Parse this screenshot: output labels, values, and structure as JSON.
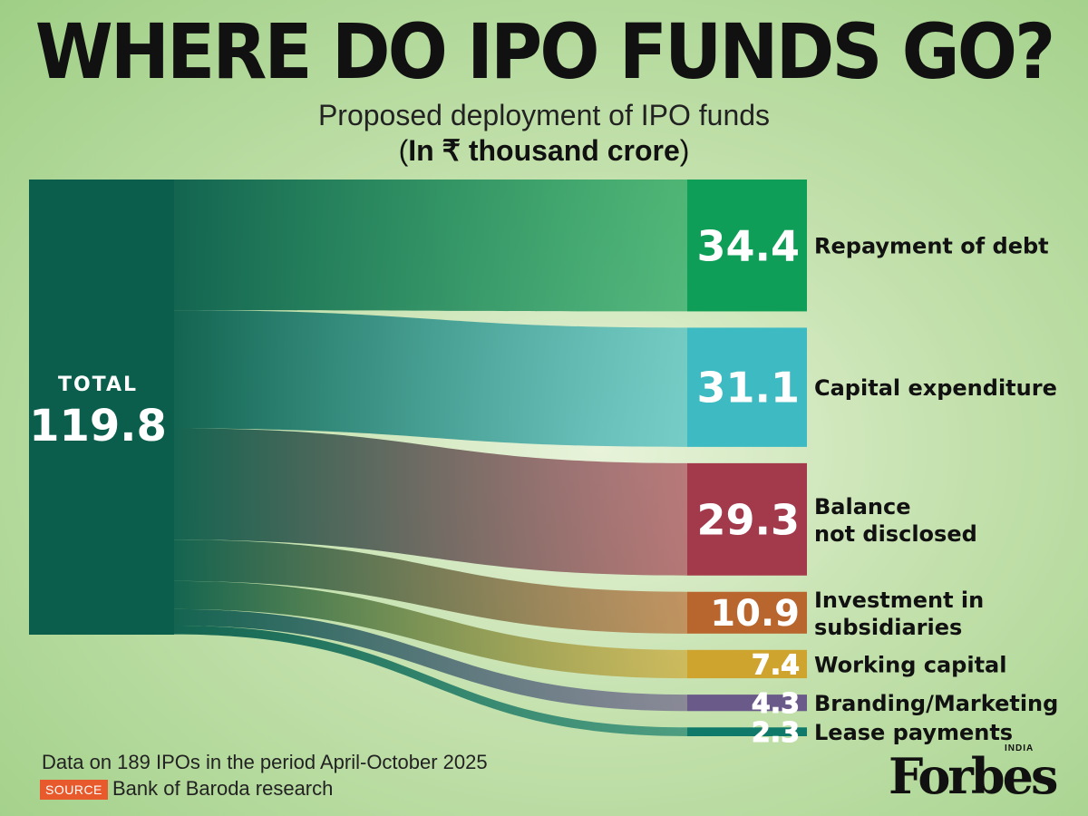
{
  "header": {
    "title": "WHERE DO IPO FUNDS GO?",
    "subtitle": "Proposed deployment of IPO funds",
    "unit_prefix": "(",
    "unit_bold": "In ₹ thousand crore",
    "unit_suffix": ")"
  },
  "chart_data": {
    "type": "sankey",
    "source": {
      "label": "TOTAL",
      "value": 119.8,
      "value_label": "119.8"
    },
    "targets": [
      {
        "name": "Repayment of debt",
        "value": 34.4,
        "value_label": "34.4",
        "label_lines": [
          "Repayment of debt"
        ],
        "color": "#0f9e57"
      },
      {
        "name": "Capital expenditure",
        "value": 31.1,
        "value_label": "31.1",
        "label_lines": [
          "Capital expenditure"
        ],
        "color": "#3dbac2"
      },
      {
        "name": "Balance not disclosed",
        "value": 29.3,
        "value_label": "29.3",
        "label_lines": [
          "Balance",
          "not disclosed"
        ],
        "color": "#a33a4c"
      },
      {
        "name": "Investment in subsidiaries",
        "value": 10.9,
        "value_label": "10.9",
        "label_lines": [
          "Investment in",
          "subsidiaries"
        ],
        "color": "#b8662e"
      },
      {
        "name": "Working capital",
        "value": 7.4,
        "value_label": "7.4",
        "label_lines": [
          "Working capital"
        ],
        "color": "#cfa42e"
      },
      {
        "name": "Branding/Marketing",
        "value": 4.3,
        "value_label": "4.3",
        "label_lines": [
          "Branding/Marketing"
        ],
        "color": "#6a5a8a"
      },
      {
        "name": "Lease payments",
        "value": 2.3,
        "value_label": "2.3",
        "label_lines": [
          "Lease payments"
        ],
        "color": "#0f7a6a"
      }
    ],
    "source_color": "#0b5e4c"
  },
  "footer": {
    "note": "Data on 189 IPOs in the period April-October 2025",
    "source_badge": "SOURCE",
    "source_text": "Bank of Baroda research"
  },
  "logo": {
    "word": "Forbes",
    "region": "INDIA"
  }
}
